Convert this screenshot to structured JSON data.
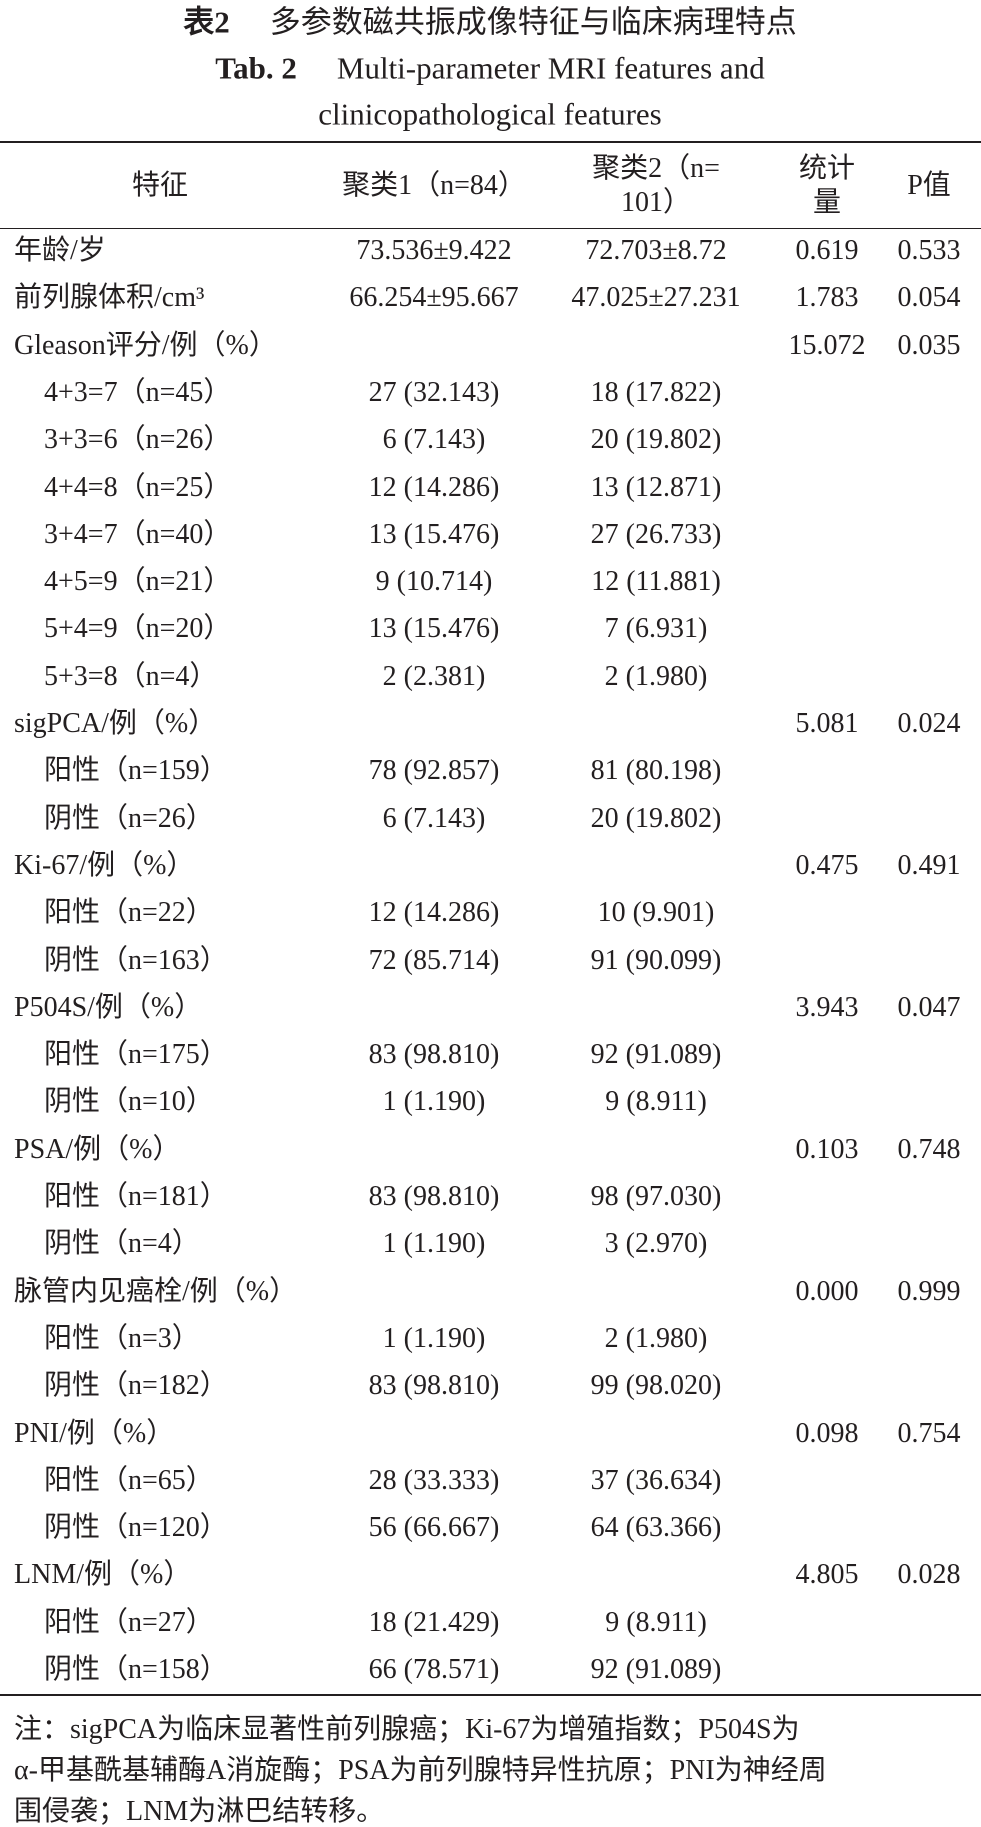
{
  "header": {
    "label_cn": "表2",
    "title_cn": "多参数磁共振成像特征与临床病理特点",
    "label_en": "Tab. 2",
    "title_en": [
      "Multi-parameter MRI features and",
      "clinicopathological features"
    ]
  },
  "table": {
    "columns": [
      [
        "特征"
      ],
      [
        "聚类1（n=84）"
      ],
      [
        "聚类2（n=",
        "101）"
      ],
      [
        "统计",
        "量"
      ],
      [
        "P值"
      ]
    ],
    "sections": [
      {
        "label": "年龄/岁",
        "cluster1": "73.536±9.422",
        "cluster2": "72.703±8.72",
        "statistic": "0.619",
        "p": "0.533"
      },
      {
        "label": "前列腺体积/cm³",
        "cluster1": "66.254±95.667",
        "cluster2": "47.025±27.231",
        "statistic": "1.783",
        "p": "0.054"
      },
      {
        "label": "Gleason评分/例（%）",
        "statistic": "15.072",
        "p": "0.035",
        "items": [
          {
            "label": "4+3=7（n=45）",
            "cluster1": "27 (32.143)",
            "cluster2": "18 (17.822)"
          },
          {
            "label": "3+3=6（n=26）",
            "cluster1": "6 (7.143)",
            "cluster2": "20 (19.802)"
          },
          {
            "label": "4+4=8（n=25）",
            "cluster1": "12 (14.286)",
            "cluster2": "13 (12.871)"
          },
          {
            "label": "3+4=7（n=40）",
            "cluster1": "13 (15.476)",
            "cluster2": "27 (26.733)"
          },
          {
            "label": "4+5=9（n=21）",
            "cluster1": "9 (10.714)",
            "cluster2": "12 (11.881)"
          },
          {
            "label": "5+4=9（n=20）",
            "cluster1": "13 (15.476)",
            "cluster2": "7 (6.931)"
          },
          {
            "label": "5+3=8（n=4）",
            "cluster1": "2 (2.381)",
            "cluster2": "2 (1.980)"
          }
        ]
      },
      {
        "label": "sigPCA/例（%）",
        "statistic": "5.081",
        "p": "0.024",
        "items": [
          {
            "label": "阳性（n=159）",
            "cluster1": "78 (92.857)",
            "cluster2": "81 (80.198)"
          },
          {
            "label": "阴性（n=26）",
            "cluster1": "6 (7.143)",
            "cluster2": "20 (19.802)"
          }
        ]
      },
      {
        "label": "Ki-67/例（%）",
        "statistic": "0.475",
        "p": "0.491",
        "items": [
          {
            "label": "阳性（n=22）",
            "cluster1": "12 (14.286)",
            "cluster2": "10 (9.901)"
          },
          {
            "label": "阴性（n=163）",
            "cluster1": "72 (85.714)",
            "cluster2": "91 (90.099)"
          }
        ]
      },
      {
        "label": "P504S/例（%）",
        "statistic": "3.943",
        "p": "0.047",
        "items": [
          {
            "label": "阳性（n=175）",
            "cluster1": "83 (98.810)",
            "cluster2": "92 (91.089)"
          },
          {
            "label": "阴性（n=10）",
            "cluster1": "1 (1.190)",
            "cluster2": "9 (8.911)"
          }
        ]
      },
      {
        "label": "PSA/例（%）",
        "statistic": "0.103",
        "p": "0.748",
        "items": [
          {
            "label": "阳性（n=181）",
            "cluster1": "83 (98.810)",
            "cluster2": "98 (97.030)"
          },
          {
            "label": "阴性（n=4）",
            "cluster1": "1 (1.190)",
            "cluster2": "3 (2.970)"
          }
        ]
      },
      {
        "label": "脉管内见癌栓/例（%）",
        "statistic": "0.000",
        "p": "0.999",
        "items": [
          {
            "label": "阳性（n=3）",
            "cluster1": "1 (1.190)",
            "cluster2": "2 (1.980)"
          },
          {
            "label": "阴性（n=182）",
            "cluster1": "83 (98.810)",
            "cluster2": "99 (98.020)"
          }
        ]
      },
      {
        "label": "PNI/例（%）",
        "statistic": "0.098",
        "p": "0.754",
        "items": [
          {
            "label": "阳性（n=65）",
            "cluster1": "28 (33.333)",
            "cluster2": "37 (36.634)"
          },
          {
            "label": "阴性（n=120）",
            "cluster1": "56 (66.667)",
            "cluster2": "64 (63.366)"
          }
        ]
      },
      {
        "label": "LNM/例（%）",
        "statistic": "4.805",
        "p": "0.028",
        "items": [
          {
            "label": "阳性（n=27）",
            "cluster1": "18 (21.429)",
            "cluster2": "9 (8.911)"
          },
          {
            "label": "阴性（n=158）",
            "cluster1": "66 (78.571)",
            "cluster2": "92 (91.089)"
          }
        ]
      }
    ]
  },
  "notes": [
    "注：sigPCA为临床显著性前列腺癌；Ki-67为增殖指数；P504S为",
    "α-甲基酰基辅酶A消旋酶；PSA为前列腺特异性抗原；PNI为神经周",
    "围侵袭；LNM为淋巴结转移。"
  ]
}
